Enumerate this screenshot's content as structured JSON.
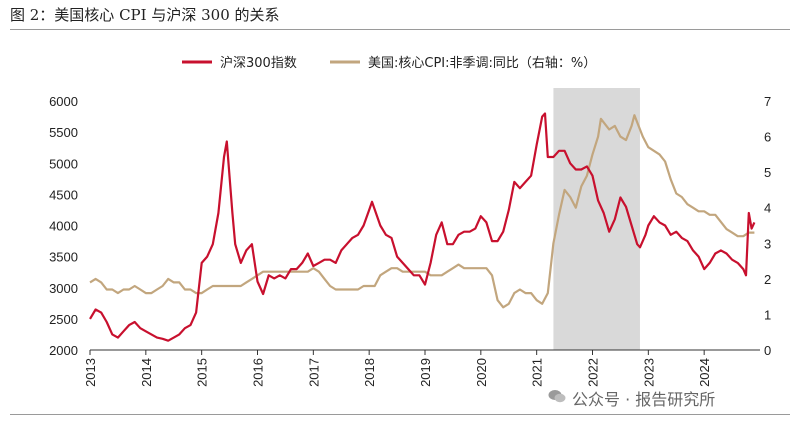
{
  "figure": {
    "title": "图 2：美国核心 CPI 与沪深 300 的关系",
    "watermark": "公众号 · 报告研究所"
  },
  "chart_data": {
    "type": "line",
    "legend_position": "top",
    "x_ticks": [
      "2013",
      "2014",
      "2015",
      "2016",
      "2017",
      "2018",
      "2019",
      "2020",
      "2021",
      "2022",
      "2023",
      "2024"
    ],
    "y_left": {
      "range": [
        2000,
        6000
      ],
      "ticks": [
        "2000",
        "2500",
        "3000",
        "3500",
        "4000",
        "4500",
        "5000",
        "5500",
        "6000"
      ]
    },
    "y_right": {
      "range": [
        0,
        7
      ],
      "ticks": [
        "0",
        "1",
        "2",
        "3",
        "4",
        "5",
        "6",
        "7"
      ]
    },
    "shaded_period": [
      "2021.3",
      "2022.85"
    ],
    "series": [
      {
        "name": "沪深300指数",
        "axis": "left",
        "color": "#c8102e",
        "points": [
          [
            2013.0,
            2500
          ],
          [
            2013.1,
            2650
          ],
          [
            2013.2,
            2600
          ],
          [
            2013.3,
            2450
          ],
          [
            2013.4,
            2250
          ],
          [
            2013.5,
            2200
          ],
          [
            2013.6,
            2300
          ],
          [
            2013.7,
            2400
          ],
          [
            2013.8,
            2450
          ],
          [
            2013.9,
            2350
          ],
          [
            2014.0,
            2300
          ],
          [
            2014.1,
            2250
          ],
          [
            2014.2,
            2200
          ],
          [
            2014.3,
            2180
          ],
          [
            2014.4,
            2150
          ],
          [
            2014.5,
            2200
          ],
          [
            2014.6,
            2250
          ],
          [
            2014.7,
            2350
          ],
          [
            2014.8,
            2400
          ],
          [
            2014.9,
            2600
          ],
          [
            2015.0,
            3400
          ],
          [
            2015.1,
            3500
          ],
          [
            2015.2,
            3700
          ],
          [
            2015.3,
            4200
          ],
          [
            2015.4,
            5100
          ],
          [
            2015.45,
            5350
          ],
          [
            2015.55,
            4200
          ],
          [
            2015.6,
            3700
          ],
          [
            2015.7,
            3400
          ],
          [
            2015.8,
            3600
          ],
          [
            2015.9,
            3700
          ],
          [
            2016.0,
            3100
          ],
          [
            2016.1,
            2900
          ],
          [
            2016.2,
            3200
          ],
          [
            2016.3,
            3150
          ],
          [
            2016.4,
            3200
          ],
          [
            2016.5,
            3150
          ],
          [
            2016.6,
            3300
          ],
          [
            2016.7,
            3300
          ],
          [
            2016.8,
            3400
          ],
          [
            2016.9,
            3550
          ],
          [
            2017.0,
            3350
          ],
          [
            2017.1,
            3400
          ],
          [
            2017.2,
            3450
          ],
          [
            2017.3,
            3450
          ],
          [
            2017.4,
            3400
          ],
          [
            2017.5,
            3600
          ],
          [
            2017.6,
            3700
          ],
          [
            2017.7,
            3800
          ],
          [
            2017.8,
            3850
          ],
          [
            2017.9,
            4000
          ],
          [
            2018.0,
            4250
          ],
          [
            2018.05,
            4380
          ],
          [
            2018.2,
            4000
          ],
          [
            2018.3,
            3850
          ],
          [
            2018.4,
            3800
          ],
          [
            2018.5,
            3500
          ],
          [
            2018.6,
            3400
          ],
          [
            2018.7,
            3300
          ],
          [
            2018.8,
            3200
          ],
          [
            2018.9,
            3200
          ],
          [
            2019.0,
            3050
          ],
          [
            2019.1,
            3400
          ],
          [
            2019.2,
            3850
          ],
          [
            2019.3,
            4050
          ],
          [
            2019.4,
            3700
          ],
          [
            2019.5,
            3700
          ],
          [
            2019.6,
            3850
          ],
          [
            2019.7,
            3900
          ],
          [
            2019.8,
            3900
          ],
          [
            2019.9,
            3950
          ],
          [
            2020.0,
            4150
          ],
          [
            2020.1,
            4050
          ],
          [
            2020.2,
            3750
          ],
          [
            2020.3,
            3750
          ],
          [
            2020.4,
            3900
          ],
          [
            2020.5,
            4250
          ],
          [
            2020.6,
            4700
          ],
          [
            2020.7,
            4600
          ],
          [
            2020.8,
            4700
          ],
          [
            2020.9,
            4800
          ],
          [
            2021.0,
            5300
          ],
          [
            2021.1,
            5750
          ],
          [
            2021.15,
            5800
          ],
          [
            2021.2,
            5100
          ],
          [
            2021.3,
            5100
          ],
          [
            2021.4,
            5200
          ],
          [
            2021.5,
            5200
          ],
          [
            2021.6,
            5000
          ],
          [
            2021.7,
            4900
          ],
          [
            2021.8,
            4900
          ],
          [
            2021.9,
            4950
          ],
          [
            2022.0,
            4800
          ],
          [
            2022.1,
            4400
          ],
          [
            2022.2,
            4200
          ],
          [
            2022.3,
            3900
          ],
          [
            2022.4,
            4100
          ],
          [
            2022.5,
            4450
          ],
          [
            2022.6,
            4300
          ],
          [
            2022.7,
            4000
          ],
          [
            2022.8,
            3700
          ],
          [
            2022.85,
            3650
          ],
          [
            2022.95,
            3850
          ],
          [
            2023.0,
            4000
          ],
          [
            2023.1,
            4150
          ],
          [
            2023.2,
            4050
          ],
          [
            2023.3,
            4000
          ],
          [
            2023.4,
            3850
          ],
          [
            2023.5,
            3900
          ],
          [
            2023.6,
            3800
          ],
          [
            2023.7,
            3750
          ],
          [
            2023.8,
            3600
          ],
          [
            2023.9,
            3500
          ],
          [
            2024.0,
            3300
          ],
          [
            2024.1,
            3400
          ],
          [
            2024.2,
            3550
          ],
          [
            2024.3,
            3600
          ],
          [
            2024.4,
            3550
          ],
          [
            2024.5,
            3450
          ],
          [
            2024.6,
            3400
          ],
          [
            2024.7,
            3300
          ],
          [
            2024.75,
            3200
          ],
          [
            2024.8,
            4200
          ],
          [
            2024.85,
            3950
          ],
          [
            2024.9,
            4050
          ]
        ]
      },
      {
        "name": "美国:核心CPI:非季调:同比（右轴：%）",
        "axis": "right",
        "color": "#c2a67e",
        "points": [
          [
            2013.0,
            1.9
          ],
          [
            2013.1,
            2.0
          ],
          [
            2013.2,
            1.9
          ],
          [
            2013.3,
            1.7
          ],
          [
            2013.4,
            1.7
          ],
          [
            2013.5,
            1.6
          ],
          [
            2013.6,
            1.7
          ],
          [
            2013.7,
            1.7
          ],
          [
            2013.8,
            1.8
          ],
          [
            2013.9,
            1.7
          ],
          [
            2014.0,
            1.6
          ],
          [
            2014.1,
            1.6
          ],
          [
            2014.2,
            1.7
          ],
          [
            2014.3,
            1.8
          ],
          [
            2014.4,
            2.0
          ],
          [
            2014.5,
            1.9
          ],
          [
            2014.6,
            1.9
          ],
          [
            2014.7,
            1.7
          ],
          [
            2014.8,
            1.7
          ],
          [
            2014.9,
            1.6
          ],
          [
            2015.0,
            1.6
          ],
          [
            2015.1,
            1.7
          ],
          [
            2015.2,
            1.8
          ],
          [
            2015.3,
            1.8
          ],
          [
            2015.4,
            1.8
          ],
          [
            2015.5,
            1.8
          ],
          [
            2015.6,
            1.8
          ],
          [
            2015.7,
            1.8
          ],
          [
            2015.8,
            1.9
          ],
          [
            2015.9,
            2.0
          ],
          [
            2016.0,
            2.1
          ],
          [
            2016.1,
            2.2
          ],
          [
            2016.2,
            2.2
          ],
          [
            2016.3,
            2.2
          ],
          [
            2016.4,
            2.2
          ],
          [
            2016.5,
            2.2
          ],
          [
            2016.6,
            2.2
          ],
          [
            2016.7,
            2.2
          ],
          [
            2016.8,
            2.2
          ],
          [
            2016.9,
            2.2
          ],
          [
            2017.0,
            2.3
          ],
          [
            2017.1,
            2.2
          ],
          [
            2017.2,
            2.0
          ],
          [
            2017.3,
            1.8
          ],
          [
            2017.4,
            1.7
          ],
          [
            2017.5,
            1.7
          ],
          [
            2017.6,
            1.7
          ],
          [
            2017.7,
            1.7
          ],
          [
            2017.8,
            1.7
          ],
          [
            2017.9,
            1.8
          ],
          [
            2018.0,
            1.8
          ],
          [
            2018.1,
            1.8
          ],
          [
            2018.2,
            2.1
          ],
          [
            2018.3,
            2.2
          ],
          [
            2018.4,
            2.3
          ],
          [
            2018.5,
            2.3
          ],
          [
            2018.6,
            2.2
          ],
          [
            2018.7,
            2.2
          ],
          [
            2018.8,
            2.2
          ],
          [
            2018.9,
            2.2
          ],
          [
            2019.0,
            2.2
          ],
          [
            2019.1,
            2.1
          ],
          [
            2019.2,
            2.1
          ],
          [
            2019.3,
            2.1
          ],
          [
            2019.4,
            2.2
          ],
          [
            2019.5,
            2.3
          ],
          [
            2019.6,
            2.4
          ],
          [
            2019.7,
            2.3
          ],
          [
            2019.8,
            2.3
          ],
          [
            2019.9,
            2.3
          ],
          [
            2020.0,
            2.3
          ],
          [
            2020.1,
            2.3
          ],
          [
            2020.2,
            2.1
          ],
          [
            2020.3,
            1.4
          ],
          [
            2020.4,
            1.2
          ],
          [
            2020.5,
            1.3
          ],
          [
            2020.6,
            1.6
          ],
          [
            2020.7,
            1.7
          ],
          [
            2020.8,
            1.6
          ],
          [
            2020.9,
            1.6
          ],
          [
            2021.0,
            1.4
          ],
          [
            2021.1,
            1.3
          ],
          [
            2021.2,
            1.6
          ],
          [
            2021.3,
            3.0
          ],
          [
            2021.4,
            3.8
          ],
          [
            2021.5,
            4.5
          ],
          [
            2021.6,
            4.3
          ],
          [
            2021.7,
            4.0
          ],
          [
            2021.8,
            4.6
          ],
          [
            2021.9,
            4.9
          ],
          [
            2022.0,
            5.5
          ],
          [
            2022.1,
            6.0
          ],
          [
            2022.15,
            6.5
          ],
          [
            2022.3,
            6.2
          ],
          [
            2022.4,
            6.3
          ],
          [
            2022.5,
            6.0
          ],
          [
            2022.6,
            5.9
          ],
          [
            2022.7,
            6.3
          ],
          [
            2022.75,
            6.6
          ],
          [
            2022.9,
            6.0
          ],
          [
            2023.0,
            5.7
          ],
          [
            2023.1,
            5.6
          ],
          [
            2023.2,
            5.5
          ],
          [
            2023.3,
            5.3
          ],
          [
            2023.4,
            4.8
          ],
          [
            2023.5,
            4.4
          ],
          [
            2023.6,
            4.3
          ],
          [
            2023.7,
            4.1
          ],
          [
            2023.8,
            4.0
          ],
          [
            2023.9,
            3.9
          ],
          [
            2024.0,
            3.9
          ],
          [
            2024.1,
            3.8
          ],
          [
            2024.2,
            3.8
          ],
          [
            2024.3,
            3.6
          ],
          [
            2024.4,
            3.4
          ],
          [
            2024.5,
            3.3
          ],
          [
            2024.6,
            3.2
          ],
          [
            2024.7,
            3.2
          ],
          [
            2024.8,
            3.3
          ],
          [
            2024.9,
            3.3
          ]
        ]
      }
    ]
  }
}
